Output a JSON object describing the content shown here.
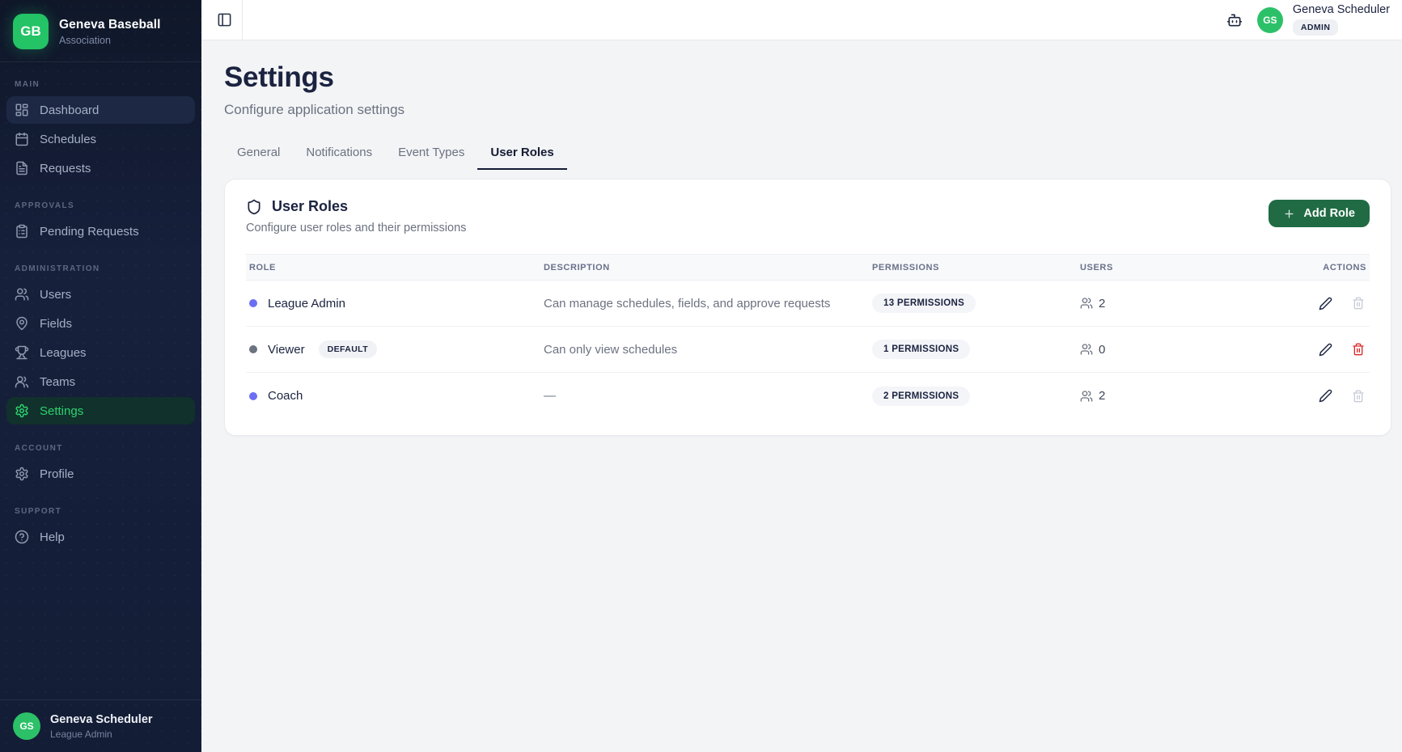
{
  "brand": {
    "initials": "GB",
    "name": "Geneva Baseball",
    "type": "Association"
  },
  "sidebar": {
    "sections": [
      {
        "label": "Main",
        "items": [
          {
            "label": "Dashboard",
            "icon": "dashboard-icon",
            "state": "highlighted"
          },
          {
            "label": "Schedules",
            "icon": "calendar-icon",
            "state": "normal"
          },
          {
            "label": "Requests",
            "icon": "file-icon",
            "state": "normal"
          }
        ]
      },
      {
        "label": "Approvals",
        "items": [
          {
            "label": "Pending Requests",
            "icon": "clipboard-icon",
            "state": "normal"
          }
        ]
      },
      {
        "label": "Administration",
        "items": [
          {
            "label": "Users",
            "icon": "users-icon",
            "state": "normal"
          },
          {
            "label": "Fields",
            "icon": "map-pin-icon",
            "state": "normal"
          },
          {
            "label": "Leagues",
            "icon": "trophy-icon",
            "state": "normal"
          },
          {
            "label": "Teams",
            "icon": "team-icon",
            "state": "normal"
          },
          {
            "label": "Settings",
            "icon": "gear-icon",
            "state": "active"
          }
        ]
      },
      {
        "label": "Account",
        "items": [
          {
            "label": "Profile",
            "icon": "gear-icon",
            "state": "normal"
          }
        ]
      },
      {
        "label": "Support",
        "items": [
          {
            "label": "Help",
            "icon": "help-icon",
            "state": "normal"
          }
        ]
      }
    ],
    "footer": {
      "initials": "GS",
      "name": "Geneva Scheduler",
      "role": "League Admin"
    }
  },
  "topbar": {
    "user": {
      "initials": "GS",
      "name": "Geneva Scheduler",
      "badge": "ADMIN"
    }
  },
  "page": {
    "title": "Settings",
    "subtitle": "Configure application settings"
  },
  "tabs": [
    {
      "label": "General",
      "active": false
    },
    {
      "label": "Notifications",
      "active": false
    },
    {
      "label": "Event Types",
      "active": false
    },
    {
      "label": "User Roles",
      "active": true
    }
  ],
  "card": {
    "title": "User Roles",
    "subtitle": "Configure user roles and their permissions",
    "add_button_label": "Add Role"
  },
  "table": {
    "columns": [
      "Role",
      "Description",
      "Permissions",
      "Users",
      "Actions"
    ],
    "rows": [
      {
        "name": "League Admin",
        "dot_color": "#6b70f2",
        "badge": null,
        "description": "Can manage schedules, fields, and approve requests",
        "permissions_label": "13 Permissions",
        "users_count": "2",
        "delete_enabled": false
      },
      {
        "name": "Viewer",
        "dot_color": "#6b7280",
        "badge": "DEFAULT",
        "description": "Can only view schedules",
        "permissions_label": "1 Permissions",
        "users_count": "0",
        "delete_enabled": true
      },
      {
        "name": "Coach",
        "dot_color": "#6b70f2",
        "badge": null,
        "description": "—",
        "permissions_label": "2 Permissions",
        "users_count": "2",
        "delete_enabled": false
      }
    ]
  },
  "colors": {
    "accent_green": "#23c366",
    "button_green": "#206b44",
    "active_nav_bg": "#11312c",
    "active_nav_text": "#2dd36f",
    "danger_red": "#dc2626",
    "sidebar_bg": "#141d36"
  }
}
